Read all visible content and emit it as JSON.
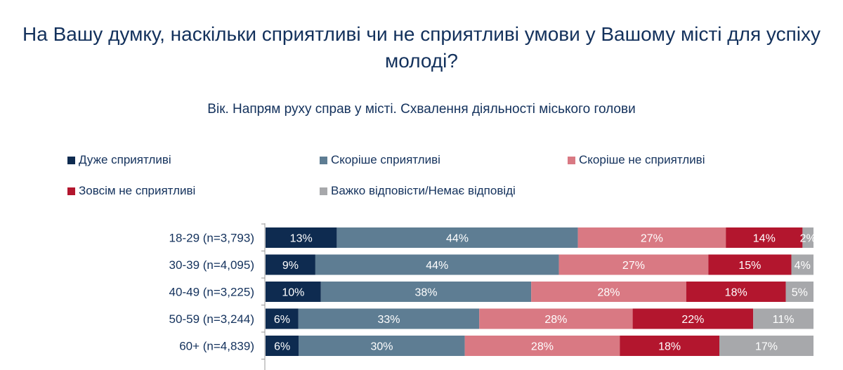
{
  "chart_data": {
    "type": "bar",
    "orientation": "horizontal-stacked-100",
    "title": "На Вашу думку, наскільки сприятливі чи не сприятливі умови у Вашому місті для успіху молоді?",
    "subtitle": "Вік. Напрям руху справ у місті. Схвалення діяльності міського голови",
    "categories": [
      "18-29 (n=3,793)",
      "30-39 (n=4,095)",
      "40-49 (n=3,225)",
      "50-59 (n=3,244)",
      "60+ (n=4,839)"
    ],
    "series": [
      {
        "name": "Дуже сприятливі",
        "color": "#0e2b50",
        "values": [
          13,
          9,
          10,
          6,
          6
        ]
      },
      {
        "name": "Скоріше сприятливі",
        "color": "#5e7d93",
        "values": [
          44,
          44,
          38,
          33,
          30
        ]
      },
      {
        "name": "Скоріше не сприятливі",
        "color": "#d97983",
        "values": [
          27,
          27,
          28,
          28,
          28
        ]
      },
      {
        "name": "Зовсім не сприятливі",
        "color": "#b3162e",
        "values": [
          14,
          15,
          18,
          22,
          18
        ]
      },
      {
        "name": "Важко відповісти/Немає відповіді",
        "color": "#a7a8ab",
        "values": [
          2,
          4,
          5,
          11,
          17
        ]
      }
    ],
    "unit": "%",
    "legend": "top"
  }
}
